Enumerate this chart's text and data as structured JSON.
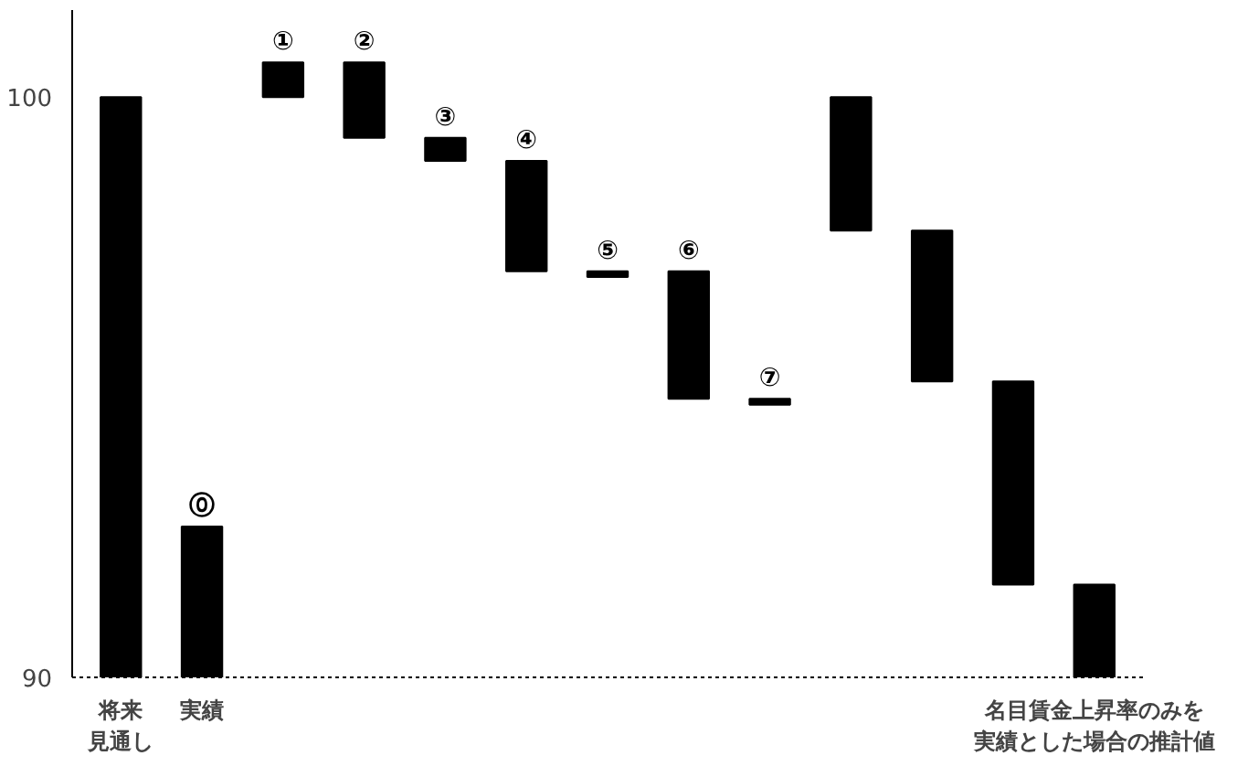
{
  "chart_data": {
    "type": "bar",
    "categories": [
      "将来見通し",
      "実績",
      null,
      null,
      null,
      null,
      null,
      null,
      null,
      null,
      null,
      null,
      "名目賃金上昇率のみを実績とした場合の推計値"
    ],
    "values": [
      10,
      2.6,
      0.6,
      -1.3,
      -0.4,
      -1.9,
      -0.1,
      -2.2,
      -0.1,
      -2.3,
      -2.6,
      -3.5,
      1.6
    ],
    "base": [
      90,
      90,
      100,
      100.6,
      99.3,
      98.9,
      97.0,
      97.0,
      94.8,
      100,
      97.7,
      95.1,
      90
    ],
    "color": "#000000",
    "value_labels": [
      null,
      "⓪",
      "①",
      "②",
      "③",
      "④",
      "⑤",
      "⑥",
      "⑦",
      null,
      null,
      null,
      null
    ],
    "ylim": [
      90,
      101.5
    ],
    "yticks": [
      90,
      100
    ],
    "grid": false
  }
}
